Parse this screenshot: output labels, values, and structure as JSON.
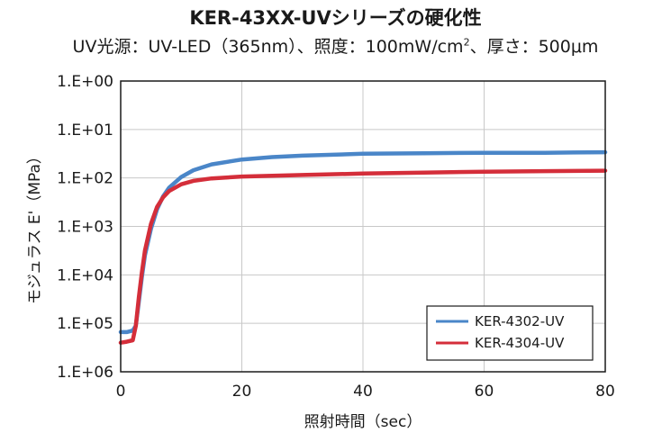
{
  "chart_data": {
    "type": "line",
    "title": "KER-43XX-UVシリーズの硬化性",
    "subtitle_prefix": "UV光源：UV-LED（365nm）、照度：100mW/cm",
    "subtitle_sup": "2",
    "subtitle_suffix": "、厚さ：500μm",
    "xlabel": "照射時間（sec）",
    "ylabel": "モジュラス E'（MPa）",
    "xlim": [
      0,
      80
    ],
    "x_ticks": [
      0,
      20,
      40,
      60,
      80
    ],
    "y_scale": "log-reversed",
    "y_tick_labels": [
      "1.E+00",
      "1.E+01",
      "1.E+02",
      "1.E+03",
      "1.E+04",
      "1.E+05",
      "1.E+06"
    ],
    "y_tick_exponents": [
      0,
      1,
      2,
      3,
      4,
      5,
      6
    ],
    "grid": true,
    "legend_position": "bottom-right",
    "series": [
      {
        "name": "KER-4302-UV",
        "color": "#4a86c8",
        "points": [
          [
            0,
            5.18
          ],
          [
            1,
            5.18
          ],
          [
            2,
            5.15
          ],
          [
            2.5,
            5.05
          ],
          [
            3,
            4.55
          ],
          [
            3.5,
            4.05
          ],
          [
            4,
            3.6
          ],
          [
            5,
            3.05
          ],
          [
            6,
            2.65
          ],
          [
            7,
            2.38
          ],
          [
            8,
            2.2
          ],
          [
            10,
            1.98
          ],
          [
            12,
            1.84
          ],
          [
            15,
            1.72
          ],
          [
            20,
            1.62
          ],
          [
            25,
            1.57
          ],
          [
            30,
            1.54
          ],
          [
            40,
            1.5
          ],
          [
            50,
            1.49
          ],
          [
            60,
            1.48
          ],
          [
            70,
            1.48
          ],
          [
            80,
            1.47
          ]
        ]
      },
      {
        "name": "KER-4304-UV",
        "color": "#d42e3a",
        "points": [
          [
            0,
            5.4
          ],
          [
            1,
            5.38
          ],
          [
            2,
            5.35
          ],
          [
            2.5,
            5.05
          ],
          [
            3,
            4.45
          ],
          [
            3.5,
            3.95
          ],
          [
            4,
            3.5
          ],
          [
            5,
            2.95
          ],
          [
            6,
            2.6
          ],
          [
            7,
            2.4
          ],
          [
            8,
            2.27
          ],
          [
            10,
            2.13
          ],
          [
            12,
            2.06
          ],
          [
            15,
            2.01
          ],
          [
            20,
            1.97
          ],
          [
            30,
            1.94
          ],
          [
            40,
            1.91
          ],
          [
            50,
            1.89
          ],
          [
            60,
            1.87
          ],
          [
            70,
            1.86
          ],
          [
            80,
            1.85
          ]
        ]
      }
    ]
  }
}
